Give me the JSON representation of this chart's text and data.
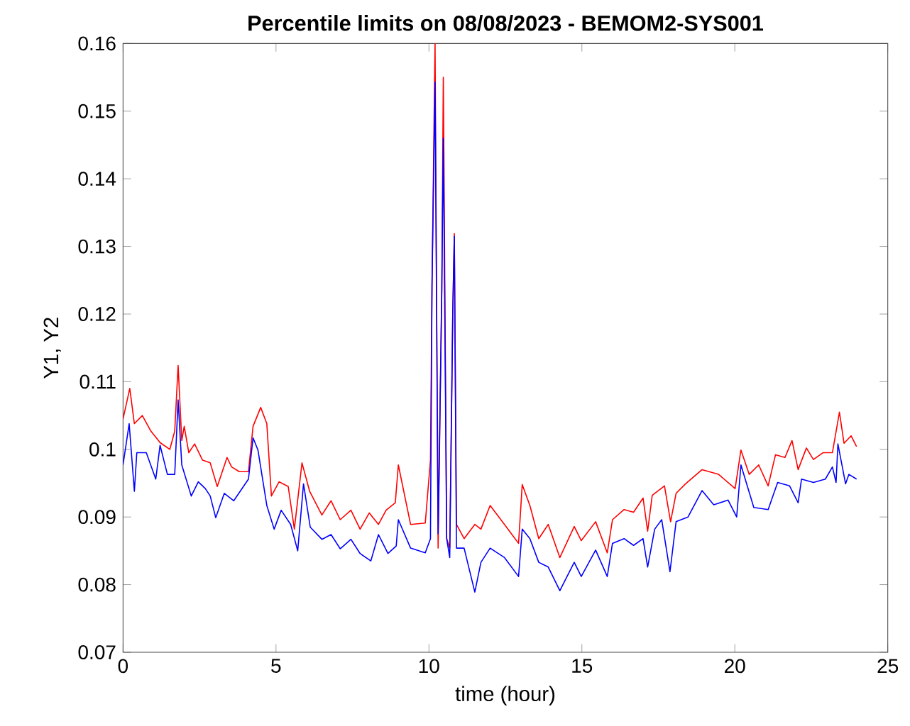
{
  "chart_data": {
    "type": "line",
    "title": "Percentile limits on 08/08/2023 - BEMOM2-SYS001",
    "xlabel": "time (hour)",
    "ylabel": "Y1, Y2",
    "xlim": [
      0,
      25
    ],
    "ylim": [
      0.07,
      0.16
    ],
    "xticks": [
      0,
      5,
      10,
      15,
      20,
      25
    ],
    "yticks": [
      0.07,
      0.08,
      0.09,
      0.1,
      0.11,
      0.12,
      0.13,
      0.14,
      0.15,
      0.16
    ],
    "marker": "none",
    "line_style": "solid",
    "series": [
      {
        "color": "#ff0000",
        "x": [
          0,
          0.22,
          0.37,
          0.63,
          0.91,
          1.21,
          1.53,
          1.69,
          1.8,
          1.92,
          2.0,
          2.15,
          2.34,
          2.6,
          2.85,
          3.08,
          3.4,
          3.55,
          3.8,
          4.1,
          4.25,
          4.5,
          4.7,
          4.85,
          5.1,
          5.4,
          5.6,
          5.85,
          6.1,
          6.5,
          6.8,
          7.1,
          7.45,
          7.75,
          8.05,
          8.35,
          8.6,
          8.9,
          9.0,
          9.4,
          9.88,
          10.05,
          10.1,
          10.2,
          10.3,
          10.42,
          10.47,
          10.58,
          10.68,
          10.78,
          10.83,
          10.9,
          11.15,
          11.5,
          11.7,
          12.0,
          12.47,
          12.93,
          13.05,
          13.3,
          13.59,
          13.9,
          14.28,
          14.75,
          14.98,
          15.45,
          15.83,
          16.0,
          16.38,
          16.69,
          17.0,
          17.15,
          17.3,
          17.7,
          17.9,
          18.08,
          18.39,
          18.93,
          19.47,
          20.01,
          20.2,
          20.47,
          20.78,
          21.09,
          21.33,
          21.64,
          21.87,
          22.07,
          22.34,
          22.57,
          22.88,
          23.19,
          23.42,
          23.57,
          23.8,
          23.98
        ],
        "values": [
          0.1045,
          0.109,
          0.1038,
          0.105,
          0.1027,
          0.101,
          0.1,
          0.1027,
          0.1124,
          0.1013,
          0.1034,
          0.0995,
          0.1008,
          0.0984,
          0.098,
          0.0945,
          0.0988,
          0.0974,
          0.0967,
          0.0967,
          0.1034,
          0.1062,
          0.1038,
          0.0931,
          0.0952,
          0.0945,
          0.0882,
          0.098,
          0.0938,
          0.0903,
          0.0924,
          0.0896,
          0.091,
          0.0882,
          0.0906,
          0.0889,
          0.091,
          0.0921,
          0.0977,
          0.0889,
          0.0891,
          0.0984,
          0.1242,
          0.16,
          0.0854,
          0.1236,
          0.155,
          0.0868,
          0.0854,
          0.1205,
          0.1319,
          0.0889,
          0.0868,
          0.0889,
          0.0882,
          0.0917,
          0.0889,
          0.0861,
          0.0948,
          0.0917,
          0.0868,
          0.0889,
          0.084,
          0.0886,
          0.0865,
          0.0893,
          0.0847,
          0.0896,
          0.0911,
          0.0907,
          0.0928,
          0.0879,
          0.0932,
          0.0946,
          0.0893,
          0.0935,
          0.0949,
          0.097,
          0.0963,
          0.0942,
          0.0999,
          0.0963,
          0.0977,
          0.0946,
          0.0992,
          0.0988,
          0.1013,
          0.097,
          0.1002,
          0.0985,
          0.0995,
          0.0995,
          0.1055,
          0.1009,
          0.102,
          0.1004
        ]
      },
      {
        "color": "#0000ff",
        "x": [
          0,
          0.2,
          0.37,
          0.45,
          0.76,
          1.07,
          1.21,
          1.45,
          1.69,
          1.8,
          1.92,
          2.23,
          2.46,
          2.69,
          2.85,
          3.03,
          3.31,
          3.62,
          4.1,
          4.25,
          4.41,
          4.7,
          4.94,
          5.17,
          5.48,
          5.71,
          5.9,
          6.12,
          6.5,
          6.8,
          7.1,
          7.45,
          7.75,
          8.1,
          8.35,
          8.66,
          8.93,
          9.0,
          9.4,
          9.88,
          10.05,
          10.1,
          10.2,
          10.3,
          10.42,
          10.47,
          10.58,
          10.68,
          10.78,
          10.83,
          10.9,
          11.15,
          11.5,
          11.7,
          12.0,
          12.47,
          12.93,
          13.05,
          13.3,
          13.59,
          13.9,
          14.28,
          14.75,
          14.98,
          15.45,
          15.83,
          16.0,
          16.38,
          16.69,
          17.0,
          17.15,
          17.38,
          17.61,
          17.88,
          18.08,
          18.47,
          18.93,
          19.31,
          19.78,
          20.06,
          20.2,
          20.62,
          21.09,
          21.4,
          21.79,
          22.07,
          22.18,
          22.57,
          22.96,
          23.19,
          23.31,
          23.37,
          23.62,
          23.73,
          23.98
        ],
        "values": [
          0.0977,
          0.1038,
          0.0938,
          0.0995,
          0.0995,
          0.0956,
          0.1006,
          0.0963,
          0.0963,
          0.1073,
          0.0977,
          0.0931,
          0.0952,
          0.0942,
          0.0931,
          0.0899,
          0.0935,
          0.0924,
          0.0956,
          0.1017,
          0.0999,
          0.0917,
          0.0882,
          0.091,
          0.0889,
          0.085,
          0.0949,
          0.0885,
          0.0867,
          0.0874,
          0.0853,
          0.0867,
          0.0846,
          0.0835,
          0.0874,
          0.0846,
          0.0857,
          0.0896,
          0.0854,
          0.0847,
          0.0868,
          0.1242,
          0.1543,
          0.0875,
          0.1236,
          0.146,
          0.0868,
          0.084,
          0.1205,
          0.1315,
          0.0854,
          0.0854,
          0.0789,
          0.0833,
          0.0854,
          0.084,
          0.0812,
          0.0882,
          0.0868,
          0.0833,
          0.0826,
          0.0791,
          0.0833,
          0.0812,
          0.0851,
          0.0812,
          0.0861,
          0.0868,
          0.0858,
          0.0868,
          0.0826,
          0.0882,
          0.0896,
          0.0819,
          0.0893,
          0.09,
          0.0939,
          0.0918,
          0.0925,
          0.09,
          0.0977,
          0.0914,
          0.0911,
          0.0951,
          0.0946,
          0.0921,
          0.0956,
          0.0951,
          0.0956,
          0.0974,
          0.0951,
          0.1008,
          0.0949,
          0.0963,
          0.0956
        ]
      }
    ]
  }
}
